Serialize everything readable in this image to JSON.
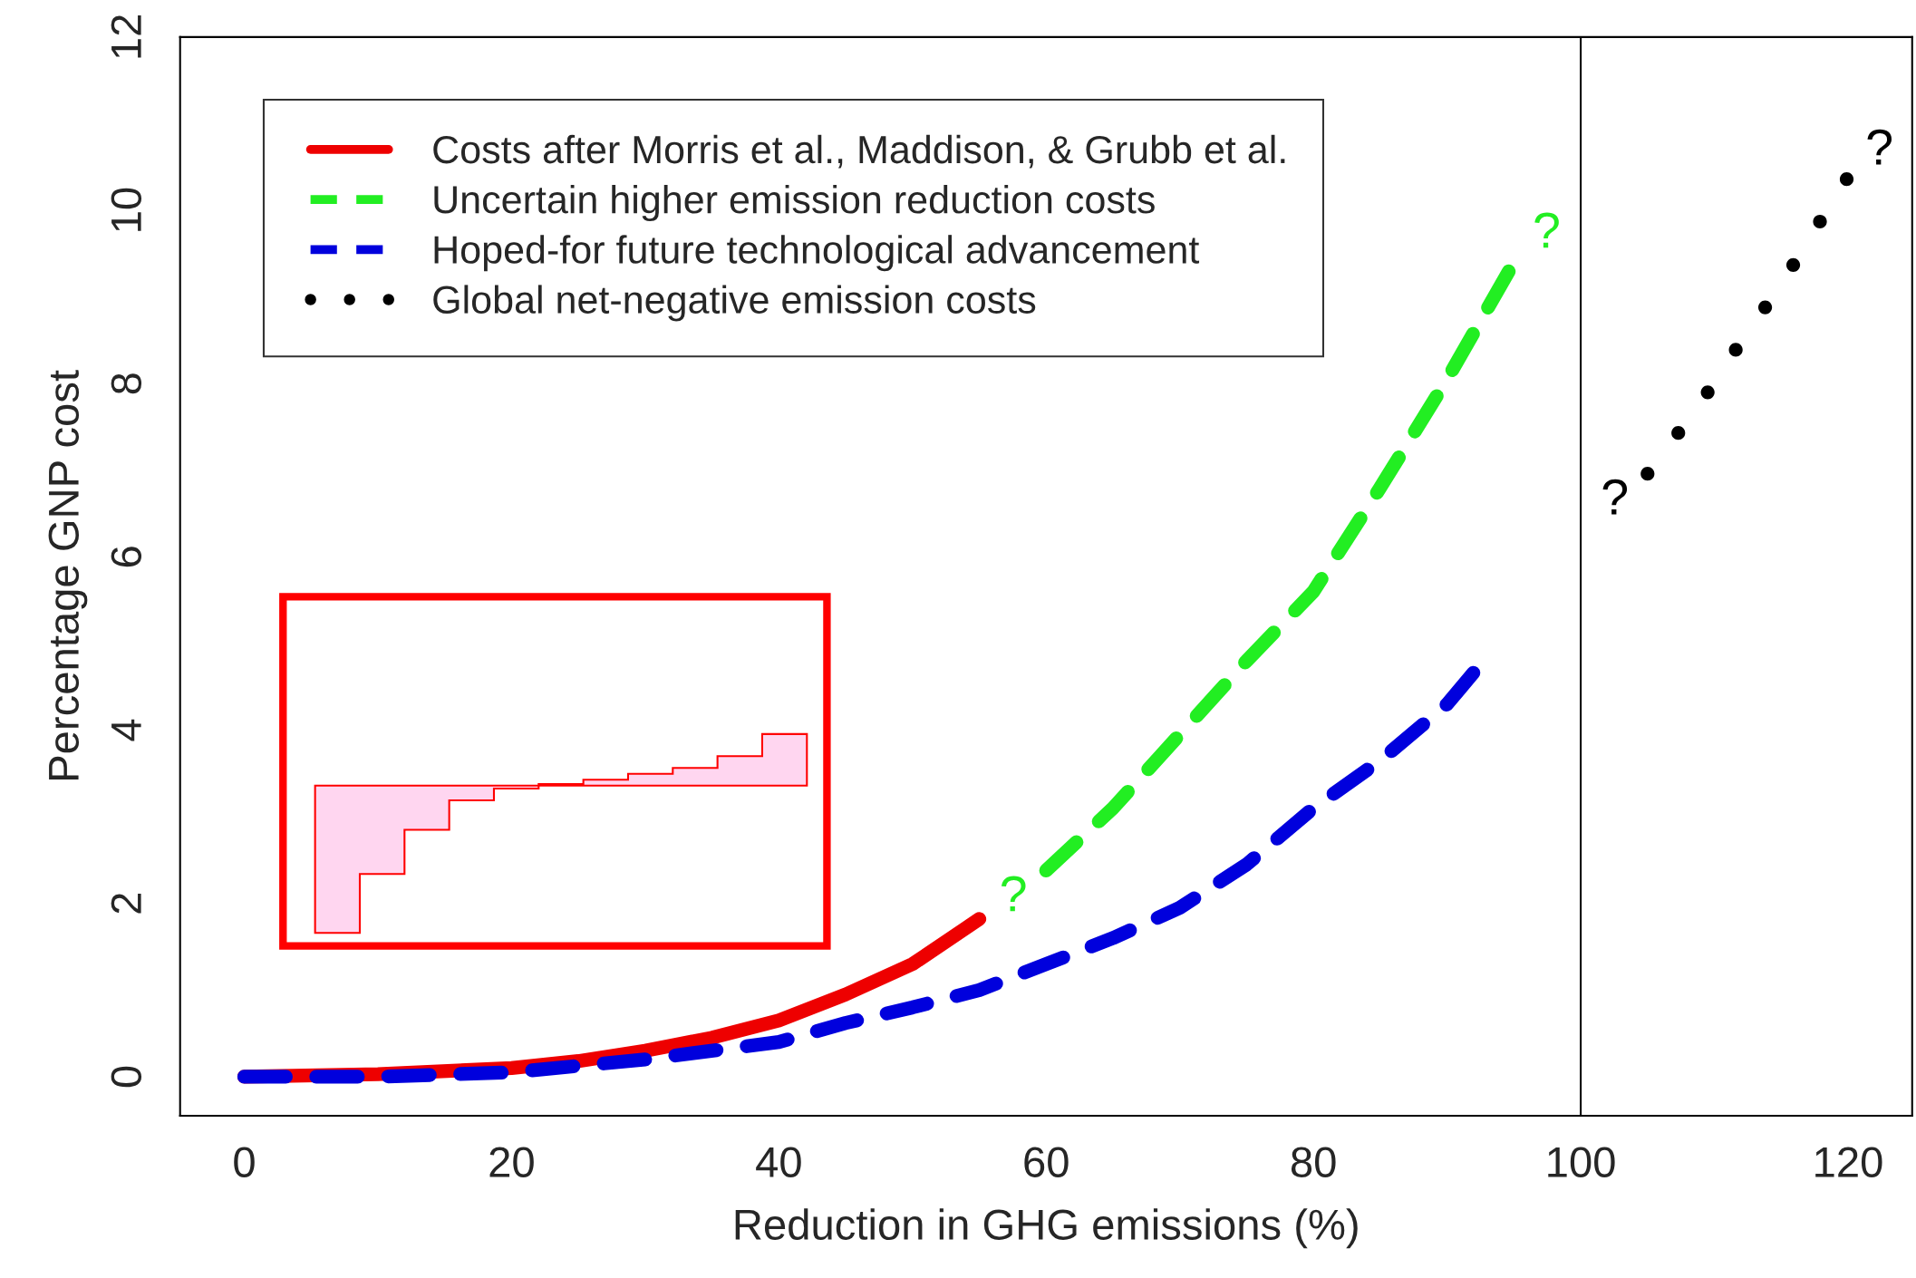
{
  "chart_data": {
    "type": "line",
    "xlabel": "Reduction in GHG emissions (%)",
    "ylabel": "Percentage GNP cost",
    "series": [
      {
        "name": "Costs after Morris et al., Maddison, & Grubb et al.",
        "color": "#ee0000",
        "line_style": "solid",
        "x": [
          0,
          10,
          20,
          25,
          30,
          35,
          40,
          45,
          50,
          55
        ],
        "values": [
          0,
          0.03,
          0.1,
          0.18,
          0.3,
          0.45,
          0.65,
          0.95,
          1.3,
          1.82
        ]
      },
      {
        "name": "Uncertain higher emission reduction costs",
        "color": "#22ee22",
        "line_style": "dashed",
        "x": [
          60,
          65,
          70,
          75,
          80,
          85,
          90,
          95
        ],
        "values": [
          2.38,
          3.1,
          3.95,
          4.8,
          5.6,
          6.8,
          8.05,
          9.4
        ]
      },
      {
        "name": "Hoped-for future technological advancement",
        "color": "#0000dd",
        "line_style": "dashed",
        "x": [
          0,
          10,
          20,
          30,
          40,
          45,
          50,
          55,
          60,
          65,
          70,
          75,
          80,
          85,
          90,
          93
        ],
        "values": [
          0,
          0,
          0.05,
          0.2,
          0.4,
          0.62,
          0.8,
          1.0,
          1.3,
          1.6,
          1.95,
          2.45,
          3.1,
          3.65,
          4.3,
          4.85
        ]
      },
      {
        "name": "Global net-negative emission costs",
        "color": "#000000",
        "type": "scatter",
        "marker": "circle",
        "x": [
          105.0,
          107.3,
          109.5,
          111.6,
          113.8,
          115.9,
          117.9,
          119.9
        ],
        "values": [
          6.96,
          7.43,
          7.9,
          8.39,
          8.88,
          9.37,
          9.87,
          10.36
        ]
      }
    ],
    "annotations": [
      "?",
      "?",
      "?",
      "?"
    ],
    "ref_lines": [
      {
        "axis": "x",
        "value": 100,
        "color": "#000000"
      }
    ],
    "xlim": [
      -4.8,
      124.8
    ],
    "ylim": [
      -0.45,
      12
    ],
    "xticks": [
      0,
      20,
      40,
      60,
      80,
      100,
      120
    ],
    "yticks": [
      0,
      2,
      4,
      6,
      8,
      10,
      12
    ],
    "grid": false,
    "legend": "top left"
  }
}
